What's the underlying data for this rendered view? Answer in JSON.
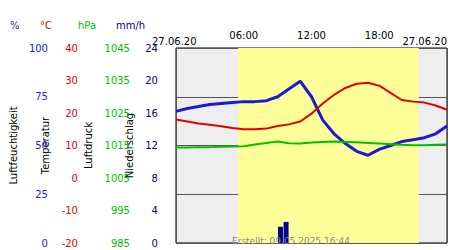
{
  "chart_data": {
    "type": "line",
    "dates": [
      "27.06.20",
      "27.06.20"
    ],
    "footer": "Erstellt: 09.05.2025 16:44",
    "grid": true,
    "daylight": [
      5.5,
      21.5
    ],
    "xlim": [
      0,
      24
    ],
    "xticks": [
      {
        "value": 6,
        "label": "06:00"
      },
      {
        "value": 12,
        "label": "12:00"
      },
      {
        "value": 18,
        "label": "18:00"
      }
    ],
    "x": [
      0,
      1,
      2,
      3,
      4,
      5,
      6,
      7,
      8,
      9,
      10,
      11,
      12,
      13,
      14,
      15,
      16,
      17,
      18,
      19,
      20,
      21,
      22,
      23,
      24
    ],
    "series": [
      {
        "name": "Luftfeuchtigkeit",
        "unit": "%",
        "color": "#1a1ad0",
        "type": "line",
        "ylim": [
          0,
          100
        ],
        "yticks": [
          0,
          25,
          50,
          75,
          100
        ],
        "values": [
          67.5,
          69,
          70,
          71,
          71.5,
          72,
          72.5,
          72.5,
          73,
          75,
          79,
          83,
          75,
          63,
          56,
          51,
          47,
          45,
          48,
          50,
          52,
          53,
          54,
          56,
          60
        ]
      },
      {
        "name": "Temperatur",
        "unit": "°C",
        "color": "#e00000",
        "type": "line",
        "ylim": [
          -20,
          40
        ],
        "yticks": [
          -20,
          -10,
          0,
          10,
          20,
          30,
          40
        ],
        "values": [
          18,
          17.4,
          16.8,
          16.4,
          15.9,
          15.4,
          15,
          15,
          15.2,
          16,
          16.5,
          17.4,
          19.8,
          22.9,
          25.6,
          27.7,
          29,
          29.3,
          28.4,
          26.2,
          24,
          23.5,
          23.2,
          22.3,
          21
        ]
      },
      {
        "name": "Luftdruck",
        "unit": "hPa",
        "color": "#00c000",
        "type": "line",
        "ylim": [
          985,
          1045
        ],
        "yticks": [
          985,
          995,
          1005,
          1015,
          1025,
          1035,
          1045
        ],
        "values": [
          1014.4,
          1014.4,
          1014.5,
          1014.5,
          1014.6,
          1014.7,
          1014.8,
          1015.3,
          1015.8,
          1016.2,
          1015.7,
          1015.6,
          1015.9,
          1016.1,
          1016.2,
          1016.1,
          1016,
          1015.8,
          1015.6,
          1015.4,
          1015.2,
          1015.1,
          1015.1,
          1015.2,
          1015.3
        ]
      },
      {
        "name": "Niederschlag",
        "unit": "mm/h",
        "color": "#000090",
        "type": "bar",
        "ylim": [
          0,
          24
        ],
        "yticks": [
          0,
          4,
          8,
          12,
          16,
          20,
          24
        ],
        "x": [
          9.25,
          9.75
        ],
        "values": [
          2.0,
          2.6
        ]
      }
    ]
  }
}
